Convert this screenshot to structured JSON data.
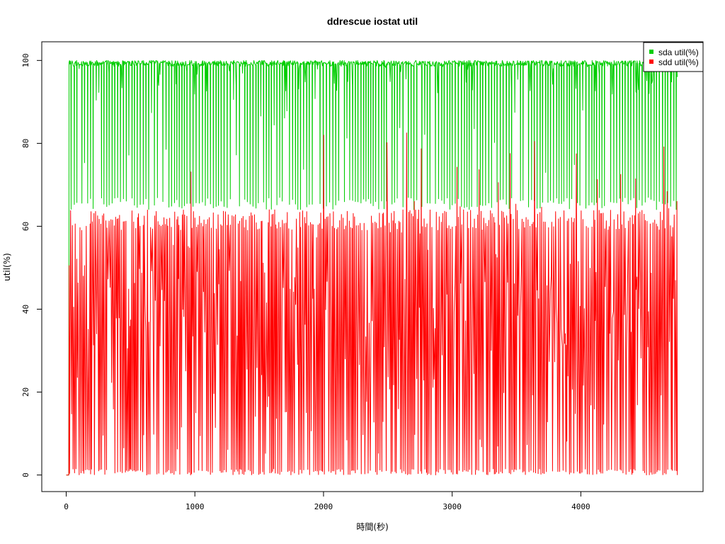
{
  "chart_data": {
    "type": "line",
    "title": "ddrescue iostat util",
    "xlabel": "時間(秒)",
    "ylabel": "util(%)",
    "xlim": [
      -190,
      4950
    ],
    "ylim": [
      -4,
      104.5
    ],
    "xticks": [
      0,
      1000,
      2000,
      3000,
      4000
    ],
    "yticks": [
      0,
      20,
      40,
      60,
      80,
      100
    ],
    "xtick_labels": [
      "0",
      "1000",
      "2000",
      "3000",
      "4000"
    ],
    "ytick_labels": [
      "0",
      "20",
      "40",
      "60",
      "80",
      "100"
    ],
    "grid": false,
    "legend_position": "top-right",
    "series": [
      {
        "name": "sda util(%)",
        "color": "#00cd00",
        "x_range": [
          0,
          4750
        ],
        "pattern": "oscillating",
        "cycle_seconds": 25,
        "high": 100,
        "low": 64,
        "idle_start_until": 20,
        "final_value": 96
      },
      {
        "name": "sdd util(%)",
        "color": "#ff0000",
        "x_range": [
          0,
          4750
        ],
        "pattern": "oscillating",
        "cycle_seconds": 12,
        "high": 64,
        "low": 0,
        "peak_max": 83,
        "idle_start_until": 20,
        "final_value": 0
      }
    ]
  }
}
